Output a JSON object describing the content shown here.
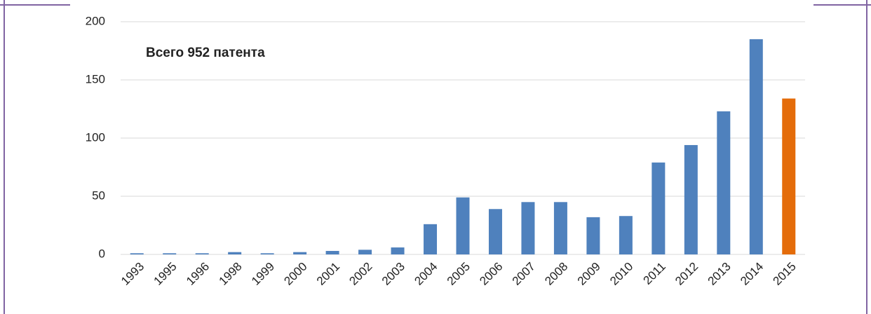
{
  "chart_data": {
    "type": "bar",
    "annotation": "Всего 952 патента",
    "categories": [
      "1993",
      "1995",
      "1996",
      "1998",
      "1999",
      "2000",
      "2001",
      "2002",
      "2003",
      "2004",
      "2005",
      "2006",
      "2007",
      "2008",
      "2009",
      "2010",
      "2011",
      "2012",
      "2013",
      "2014",
      "2015"
    ],
    "values": [
      1,
      1,
      1,
      2,
      1,
      2,
      3,
      4,
      6,
      26,
      49,
      39,
      45,
      45,
      32,
      33,
      79,
      94,
      123,
      185,
      134
    ],
    "colors": [
      "#4f81bd",
      "#4f81bd",
      "#4f81bd",
      "#4f81bd",
      "#4f81bd",
      "#4f81bd",
      "#4f81bd",
      "#4f81bd",
      "#4f81bd",
      "#4f81bd",
      "#4f81bd",
      "#4f81bd",
      "#4f81bd",
      "#4f81bd",
      "#4f81bd",
      "#4f81bd",
      "#4f81bd",
      "#4f81bd",
      "#4f81bd",
      "#4f81bd",
      "#e46c0a"
    ],
    "ylim": [
      0,
      200
    ],
    "yticks": [
      0,
      50,
      100,
      150,
      200
    ],
    "grid": true
  }
}
